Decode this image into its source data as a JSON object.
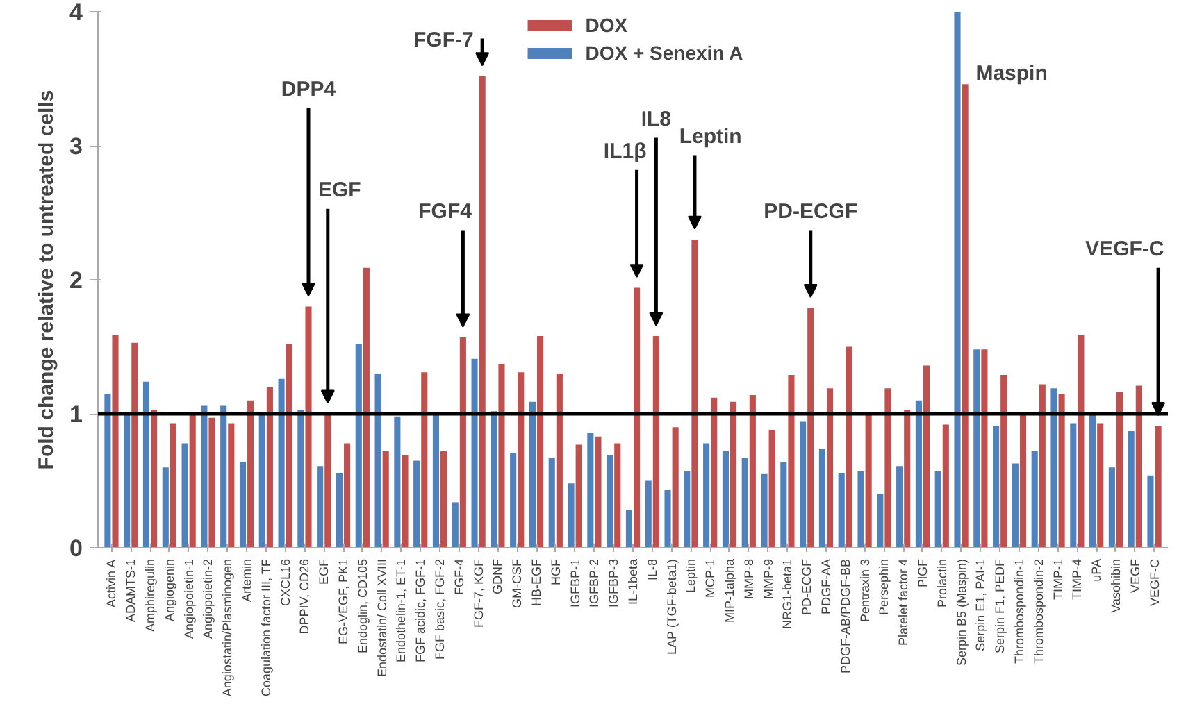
{
  "chart_data": {
    "type": "bar",
    "ylabel": "Fold change relative to untreated cells",
    "categories": [
      "Activin A",
      "ADAMTS-1",
      "Amphiregulin",
      "Angiogenin",
      "Angiopoietin-1",
      "Angiopoietin-2",
      "Angiostatin/Plasminogen",
      "Artemin",
      "Coagulation factor III, TF",
      "CXCL16",
      "DPPIV, CD26",
      "EGF",
      "EG-VEGF, PK1",
      "Endoglin, CD105",
      "Endostatin/ Coll XVIII",
      "Endothelin-1, ET-1",
      "FGF acidic, FGF-1",
      "FGF basic, FGF-2",
      "FGF-4",
      "FGF-7, KGF",
      "GDNF",
      "GM-CSF",
      "HB-EGF",
      "HGF",
      "IGFBP-1",
      "IGFBP-2",
      "IGFBP-3",
      "IL-1beta",
      "IL-8",
      "LAP (TGF-beta1)",
      "Leptin",
      "MCP-1",
      "MIP-1alpha",
      "MMP-8",
      "MMP-9",
      "NRG1-beta1",
      "PD-ECGF",
      "PDGF-AA",
      "PDGF-AB/PDGF-BB",
      "Pentraxin 3",
      "Persephin",
      "Platelet factor 4",
      "PlGF",
      "Prolactin",
      "Serpin B5 (Maspin)",
      "Serpin E1, PAI-1",
      "Serpin F1, PEDF",
      "Thrombospondin-1",
      "Thrombospondin-2",
      "TIMP-1",
      "TIMP-4",
      "uPA",
      "Vasohibin",
      "VEGF",
      "VEGF-C"
    ],
    "series": [
      {
        "name": "DOX + Senexin A",
        "color": "#4f81bd",
        "values": [
          1.15,
          1.0,
          1.24,
          0.6,
          0.78,
          1.06,
          1.06,
          0.64,
          1.0,
          1.26,
          1.03,
          0.61,
          0.56,
          1.52,
          1.3,
          0.98,
          0.65,
          0.99,
          0.34,
          1.41,
          1.02,
          0.71,
          1.09,
          0.67,
          0.48,
          0.86,
          0.69,
          0.28,
          0.5,
          0.43,
          0.57,
          0.78,
          0.72,
          0.67,
          0.55,
          0.64,
          0.94,
          0.74,
          0.56,
          0.57,
          0.4,
          0.61,
          1.1,
          0.57,
          4.0,
          1.48,
          0.91,
          0.63,
          0.72,
          1.19,
          0.93,
          1.0,
          0.6,
          0.87,
          0.54
        ]
      },
      {
        "name": "DOX",
        "color": "#c0504d",
        "values": [
          1.59,
          1.53,
          1.03,
          0.93,
          1.0,
          0.97,
          0.93,
          1.1,
          1.2,
          1.52,
          1.8,
          1.0,
          0.78,
          2.09,
          0.72,
          0.69,
          1.31,
          0.72,
          1.57,
          3.52,
          1.37,
          1.31,
          1.58,
          1.3,
          0.77,
          0.83,
          0.78,
          1.94,
          1.58,
          0.9,
          2.3,
          1.12,
          1.09,
          1.14,
          0.88,
          1.29,
          1.79,
          1.19,
          1.5,
          1.0,
          1.19,
          1.03,
          1.36,
          0.92,
          3.46,
          1.48,
          1.29,
          1.0,
          1.22,
          1.15,
          1.59,
          0.93,
          1.16,
          1.21,
          0.91
        ]
      }
    ],
    "ylim": [
      0,
      4
    ],
    "yticks": [
      0,
      1,
      2,
      3,
      4
    ],
    "grid": false,
    "legend": "top",
    "ref_lines": [
      {
        "axis": "y",
        "value": 1,
        "color": "#000000"
      }
    ],
    "annotations": [
      {
        "text": "DPP4",
        "x": "DPPIV, CD26",
        "y": 1.8
      },
      {
        "text": "EGF",
        "x": "EGF",
        "y": 1.0
      },
      {
        "text": "FGF4",
        "x": "FGF-4",
        "y": 1.57
      },
      {
        "text": "FGF-7",
        "x": "FGF-7, KGF",
        "y": 3.52
      },
      {
        "text": "IL1β",
        "x": "IL-1beta",
        "y": 1.94
      },
      {
        "text": "IL8",
        "x": "IL-8",
        "y": 1.58
      },
      {
        "text": "Leptin",
        "x": "Leptin",
        "y": 2.3
      },
      {
        "text": "PD-ECGF",
        "x": "PD-ECGF",
        "y": 1.79
      },
      {
        "text": "Maspin",
        "x": "Serpin B5 (Maspin)",
        "y": 3.46
      },
      {
        "text": "VEGF-C",
        "x": "VEGF-C",
        "y": 0.91
      }
    ]
  }
}
